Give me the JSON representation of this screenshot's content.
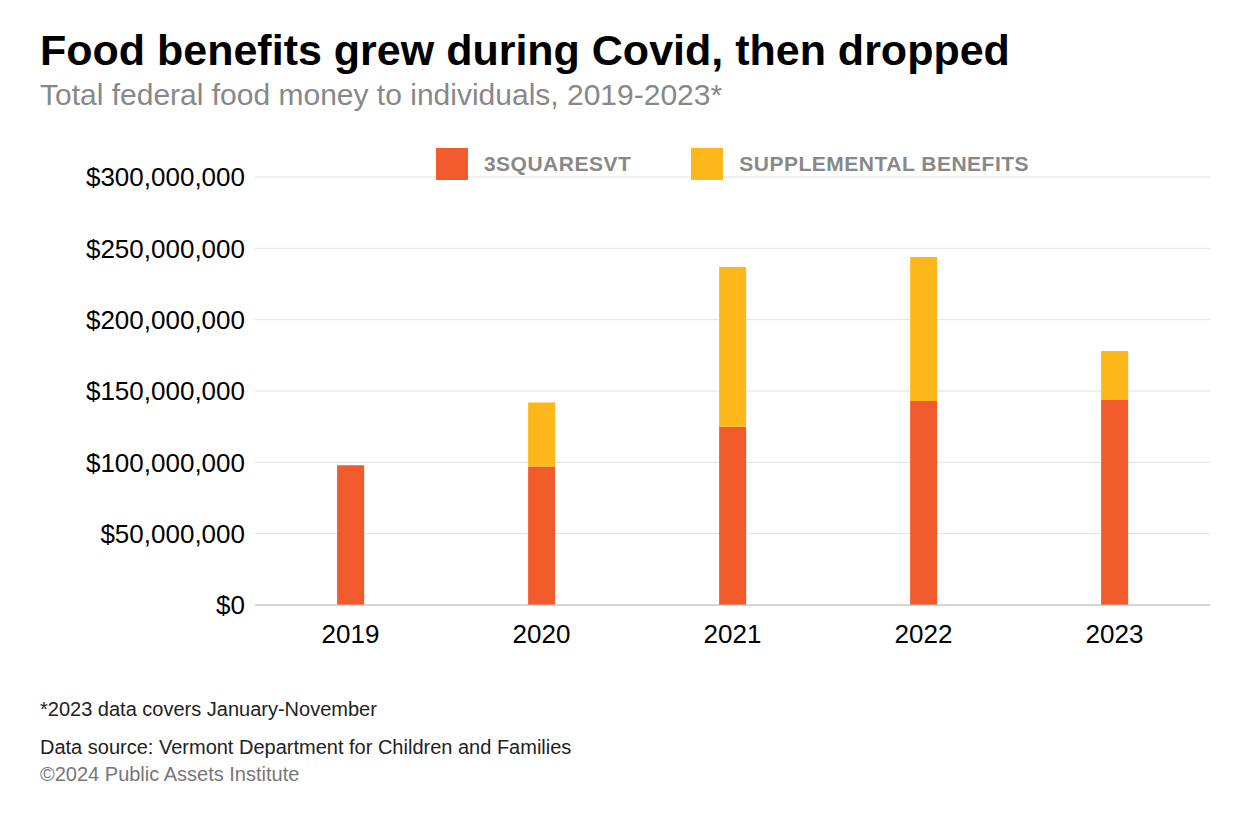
{
  "chart_data": {
    "type": "bar",
    "title": "Food benefits grew during Covid, then dropped",
    "subtitle": "Total federal food money to individuals, 2019-2023*",
    "categories": [
      "2019",
      "2020",
      "2021",
      "2022",
      "2023"
    ],
    "series": [
      {
        "name": "3SQUARESVT",
        "color": "#f15a2b",
        "values": [
          98000000,
          97000000,
          125000000,
          143000000,
          144000000
        ]
      },
      {
        "name": "SUPPLEMENTAL BENEFITS",
        "color": "#fdb71a",
        "values": [
          0,
          45000000,
          112000000,
          101000000,
          34000000
        ]
      }
    ],
    "stacked": true,
    "grid": true,
    "legend": "top",
    "ylim": [
      0,
      300000000
    ],
    "yticks": [
      {
        "value": 0,
        "label": "$0"
      },
      {
        "value": 50000000,
        "label": "$50,000,000"
      },
      {
        "value": 100000000,
        "label": "$100,000,000"
      },
      {
        "value": 150000000,
        "label": "$150,000,000"
      },
      {
        "value": 200000000,
        "label": "$200,000,000"
      },
      {
        "value": 250000000,
        "label": "$250,000,000"
      },
      {
        "value": 300000000,
        "label": "$300,000,000"
      }
    ],
    "footnote": "*2023 data covers January-November",
    "source": "Data source: Vermont Department for Children and Families",
    "copyright": "©2024 Public Assets Institute"
  }
}
